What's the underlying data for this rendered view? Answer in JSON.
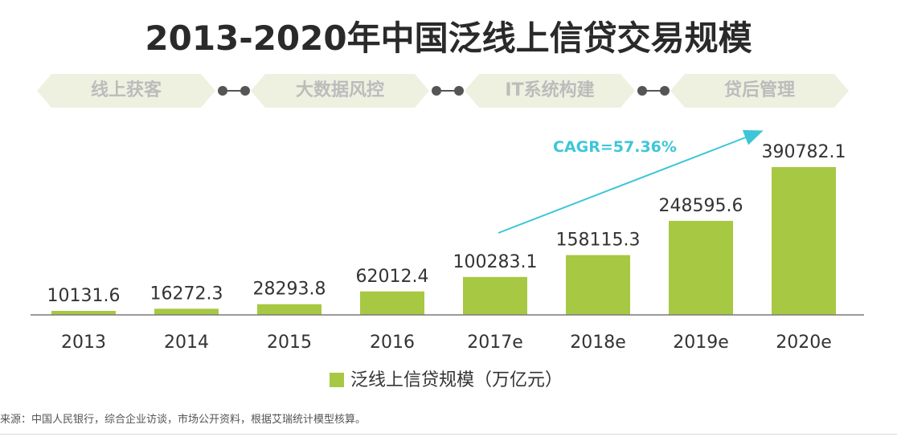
{
  "title": "2013-2020年中国泛线上信贷交易规模",
  "process_steps": [
    "线上获客",
    "大数据风控",
    "IT系统构建",
    "贷后管理"
  ],
  "annotation": "CAGR=57.36%",
  "legend_label": "泛线上信贷规模（万亿元）",
  "source": "来源：中国人民银行，综合企业访谈，市场公开资料，根据艾瑞统计模型核算。",
  "colors": {
    "bar": "#a7c843",
    "arrow": "#3ec6d8",
    "step_bg": "#eef1e0",
    "step_text": "#bcbcbc"
  },
  "chart_data": {
    "type": "bar",
    "title": "2013-2020年中国泛线上信贷交易规模",
    "categories": [
      "2013",
      "2014",
      "2015",
      "2016",
      "2017e",
      "2018e",
      "2019e",
      "2020e"
    ],
    "series": [
      {
        "name": "泛线上信贷规模（万亿元）",
        "values": [
          10131.6,
          16272.3,
          28293.8,
          62012.4,
          100283.1,
          158115.3,
          248595.6,
          390782.1
        ]
      }
    ],
    "value_labels": [
      "10131.6",
      "16272.3",
      "28293.8",
      "62012.4",
      "100283.1",
      "158115.3",
      "248595.6",
      "390782.1"
    ],
    "ylim": [
      0,
      390782.1
    ],
    "grid": false,
    "legend_position": "bottom"
  }
}
